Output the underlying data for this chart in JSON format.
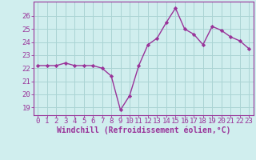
{
  "x": [
    0,
    1,
    2,
    3,
    4,
    5,
    6,
    7,
    8,
    9,
    10,
    11,
    12,
    13,
    14,
    15,
    16,
    17,
    18,
    19,
    20,
    21,
    22,
    23
  ],
  "y": [
    22.2,
    22.2,
    22.2,
    22.4,
    22.2,
    22.2,
    22.2,
    22.0,
    21.4,
    18.8,
    19.9,
    22.2,
    23.8,
    24.3,
    25.5,
    26.6,
    25.0,
    24.6,
    23.8,
    25.2,
    24.9,
    24.4,
    24.1,
    23.5
  ],
  "line_color": "#993399",
  "marker": "D",
  "marker_size": 2.2,
  "xlabel": "Windchill (Refroidissement éolien,°C)",
  "xlabel_fontsize": 7.0,
  "xtick_labels": [
    "0",
    "1",
    "2",
    "3",
    "4",
    "5",
    "6",
    "7",
    "8",
    "9",
    "10",
    "11",
    "12",
    "13",
    "14",
    "15",
    "16",
    "17",
    "18",
    "19",
    "20",
    "21",
    "22",
    "23"
  ],
  "ytick_vals": [
    19,
    20,
    21,
    22,
    23,
    24,
    25,
    26
  ],
  "ytick_labels": [
    "19",
    "20",
    "21",
    "22",
    "23",
    "24",
    "25",
    "26"
  ],
  "ylim": [
    18.4,
    27.1
  ],
  "xlim": [
    -0.5,
    23.5
  ],
  "grid_color": "#aad4d4",
  "bg_color": "#d0eeee",
  "tick_fontsize": 6.5,
  "line_width": 1.0
}
